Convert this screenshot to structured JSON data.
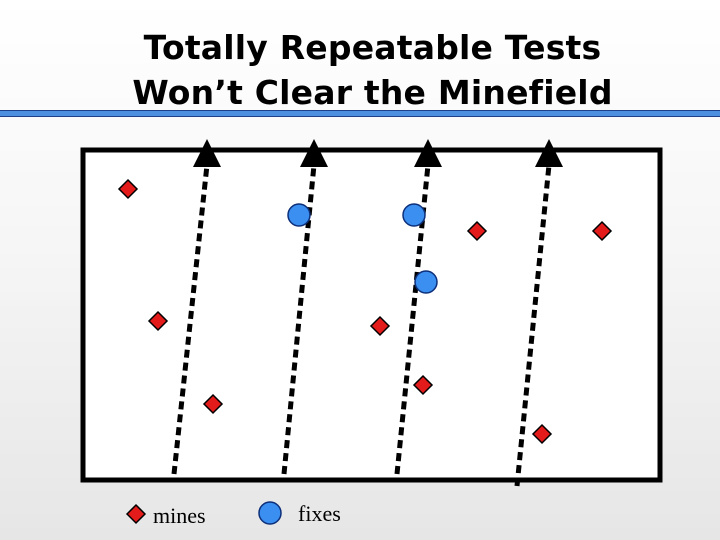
{
  "title": {
    "line1": "Totally Repeatable Tests",
    "line2": "Won’t Clear the Minefield"
  },
  "legend": {
    "mines_label": "mines",
    "fixes_label": "fixes"
  },
  "colors": {
    "accent_rule": "#4f8fe0",
    "mine_fill": "#e31b1b",
    "fix_fill": "#3b8ff0",
    "path_stroke": "#000000",
    "field_fill": "#ffffff"
  },
  "icons": {
    "mine": "red-diamond-icon",
    "fix": "blue-circle-icon",
    "path_head": "arrowhead-icon"
  }
}
